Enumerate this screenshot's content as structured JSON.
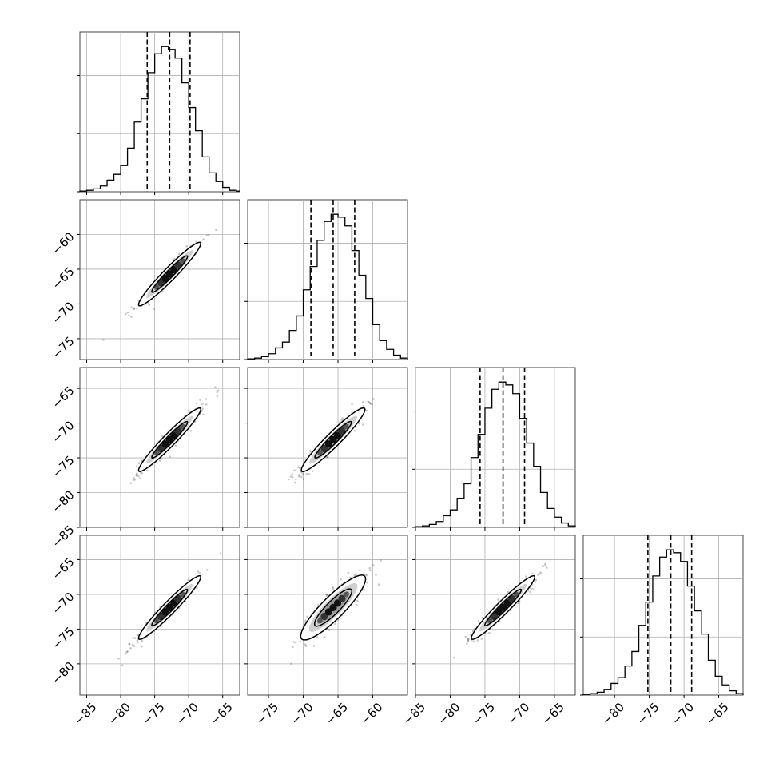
{
  "chart_data": {
    "type": "corner",
    "title": "",
    "dimension_ranges": [
      [
        -86,
        -62.5
      ],
      [
        -78,
        -55
      ],
      [
        -85,
        -62
      ],
      [
        -84.5,
        -61.5
      ]
    ],
    "histogram_ylim": [
      0,
      1.1
    ],
    "histogram_yticks": [
      0.4,
      0.8,
      1.2
    ],
    "grid": true,
    "tick_labels": {
      "dim0": [
        "−85",
        "−80",
        "−75",
        "−70",
        "−65"
      ],
      "dim1": [
        "−75",
        "−70",
        "−65",
        "−60"
      ],
      "dim2": [
        "−85",
        "−80",
        "−75",
        "−70",
        "−65"
      ],
      "dim3": [
        "−80",
        "−75",
        "−70",
        "−65"
      ]
    },
    "tick_values": {
      "dim0": [
        -85,
        -80,
        -75,
        -70,
        -65
      ],
      "dim1": [
        -75,
        -70,
        -65,
        -60
      ],
      "dim2": [
        -85,
        -80,
        -75,
        -70,
        -65
      ],
      "dim3": [
        -80,
        -75,
        -70,
        -65
      ]
    },
    "row_tick_labels": {
      "row1": [
        "−60",
        "−65",
        "−70",
        "−75"
      ],
      "row2": [
        "−65",
        "−70",
        "−75",
        "−80",
        "−85"
      ],
      "row3": [
        "−65",
        "−70",
        "−75",
        "−80"
      ]
    },
    "row_tick_values": {
      "row1": [
        -60,
        -65,
        -70,
        -75
      ],
      "row2": [
        -65,
        -70,
        -75,
        -80,
        -85
      ],
      "row3": [
        -65,
        -70,
        -75,
        -80
      ]
    },
    "marginals": [
      {
        "dimension": 0,
        "bin_edges": [
          -86,
          -85,
          -84,
          -83,
          -82,
          -81,
          -80,
          -79,
          -78,
          -77,
          -76,
          -75,
          -74,
          -73,
          -72,
          -71,
          -70,
          -69,
          -68,
          -67,
          -66,
          -65,
          -64,
          -63,
          -62.5
        ],
        "counts": [
          0.005,
          0.01,
          0.02,
          0.04,
          0.08,
          0.12,
          0.18,
          0.3,
          0.48,
          0.64,
          0.82,
          0.95,
          1.0,
          0.98,
          0.92,
          0.75,
          0.58,
          0.42,
          0.24,
          0.13,
          0.07,
          0.03,
          0.01,
          0.005
        ],
        "quantiles": [
          -76.1,
          -72.8,
          -69.8
        ]
      },
      {
        "dimension": 1,
        "bin_edges": [
          -78,
          -77,
          -76,
          -75,
          -74,
          -73,
          -72,
          -71,
          -70,
          -69,
          -68,
          -67,
          -66,
          -65,
          -64,
          -63,
          -62,
          -61,
          -60,
          -59,
          -58,
          -57,
          -56,
          -55
        ],
        "counts": [
          0.005,
          0.01,
          0.02,
          0.04,
          0.08,
          0.12,
          0.2,
          0.3,
          0.48,
          0.64,
          0.82,
          0.95,
          1.0,
          0.98,
          0.92,
          0.75,
          0.58,
          0.42,
          0.24,
          0.13,
          0.07,
          0.03,
          0.01
        ],
        "quantiles": [
          -68.9,
          -65.7,
          -62.6
        ]
      },
      {
        "dimension": 2,
        "bin_edges": [
          -85,
          -84,
          -83,
          -82,
          -81,
          -80,
          -79,
          -78,
          -77,
          -76,
          -75,
          -74,
          -73,
          -72,
          -71,
          -70,
          -69,
          -68,
          -67,
          -66,
          -65,
          -64,
          -63,
          -62
        ],
        "counts": [
          0.005,
          0.01,
          0.02,
          0.04,
          0.08,
          0.12,
          0.2,
          0.3,
          0.48,
          0.64,
          0.82,
          0.95,
          1.0,
          0.98,
          0.92,
          0.75,
          0.58,
          0.42,
          0.24,
          0.13,
          0.07,
          0.03,
          0.01
        ],
        "quantiles": [
          -75.7,
          -72.4,
          -69.3
        ]
      },
      {
        "dimension": 3,
        "bin_edges": [
          -84.5,
          -83.5,
          -82.5,
          -81.5,
          -80.5,
          -79.5,
          -78.5,
          -77.5,
          -76.5,
          -75.5,
          -74.5,
          -73.5,
          -72.5,
          -71.5,
          -70.5,
          -69.5,
          -68.5,
          -67.5,
          -66.5,
          -65.5,
          -64.5,
          -63.5,
          -62.5,
          -61.5
        ],
        "counts": [
          0.005,
          0.01,
          0.02,
          0.04,
          0.08,
          0.12,
          0.2,
          0.3,
          0.48,
          0.64,
          0.82,
          0.95,
          1.0,
          0.98,
          0.92,
          0.75,
          0.58,
          0.42,
          0.24,
          0.13,
          0.07,
          0.03,
          0.01
        ],
        "quantiles": [
          -75.2,
          -71.9,
          -68.9
        ]
      }
    ],
    "joint_panels": [
      {
        "x_dim": 0,
        "y_dim": 1,
        "center": [
          -72.8,
          -65.7
        ],
        "slope": 1.0,
        "major_sd": 3.2,
        "minor_sd": 0.45
      },
      {
        "x_dim": 0,
        "y_dim": 2,
        "center": [
          -72.8,
          -72.4
        ],
        "slope": 1.0,
        "major_sd": 3.2,
        "minor_sd": 0.45
      },
      {
        "x_dim": 1,
        "y_dim": 2,
        "center": [
          -65.7,
          -72.4
        ],
        "slope": 1.0,
        "major_sd": 3.2,
        "minor_sd": 0.5
      },
      {
        "x_dim": 0,
        "y_dim": 3,
        "center": [
          -72.8,
          -71.9
        ],
        "slope": 1.0,
        "major_sd": 3.2,
        "minor_sd": 0.45
      },
      {
        "x_dim": 1,
        "y_dim": 3,
        "center": [
          -65.7,
          -71.9
        ],
        "slope": 1.0,
        "major_sd": 3.2,
        "minor_sd": 0.8
      },
      {
        "x_dim": 2,
        "y_dim": 3,
        "center": [
          -72.4,
          -71.9
        ],
        "slope": 1.0,
        "major_sd": 3.2,
        "minor_sd": 0.45
      }
    ]
  }
}
